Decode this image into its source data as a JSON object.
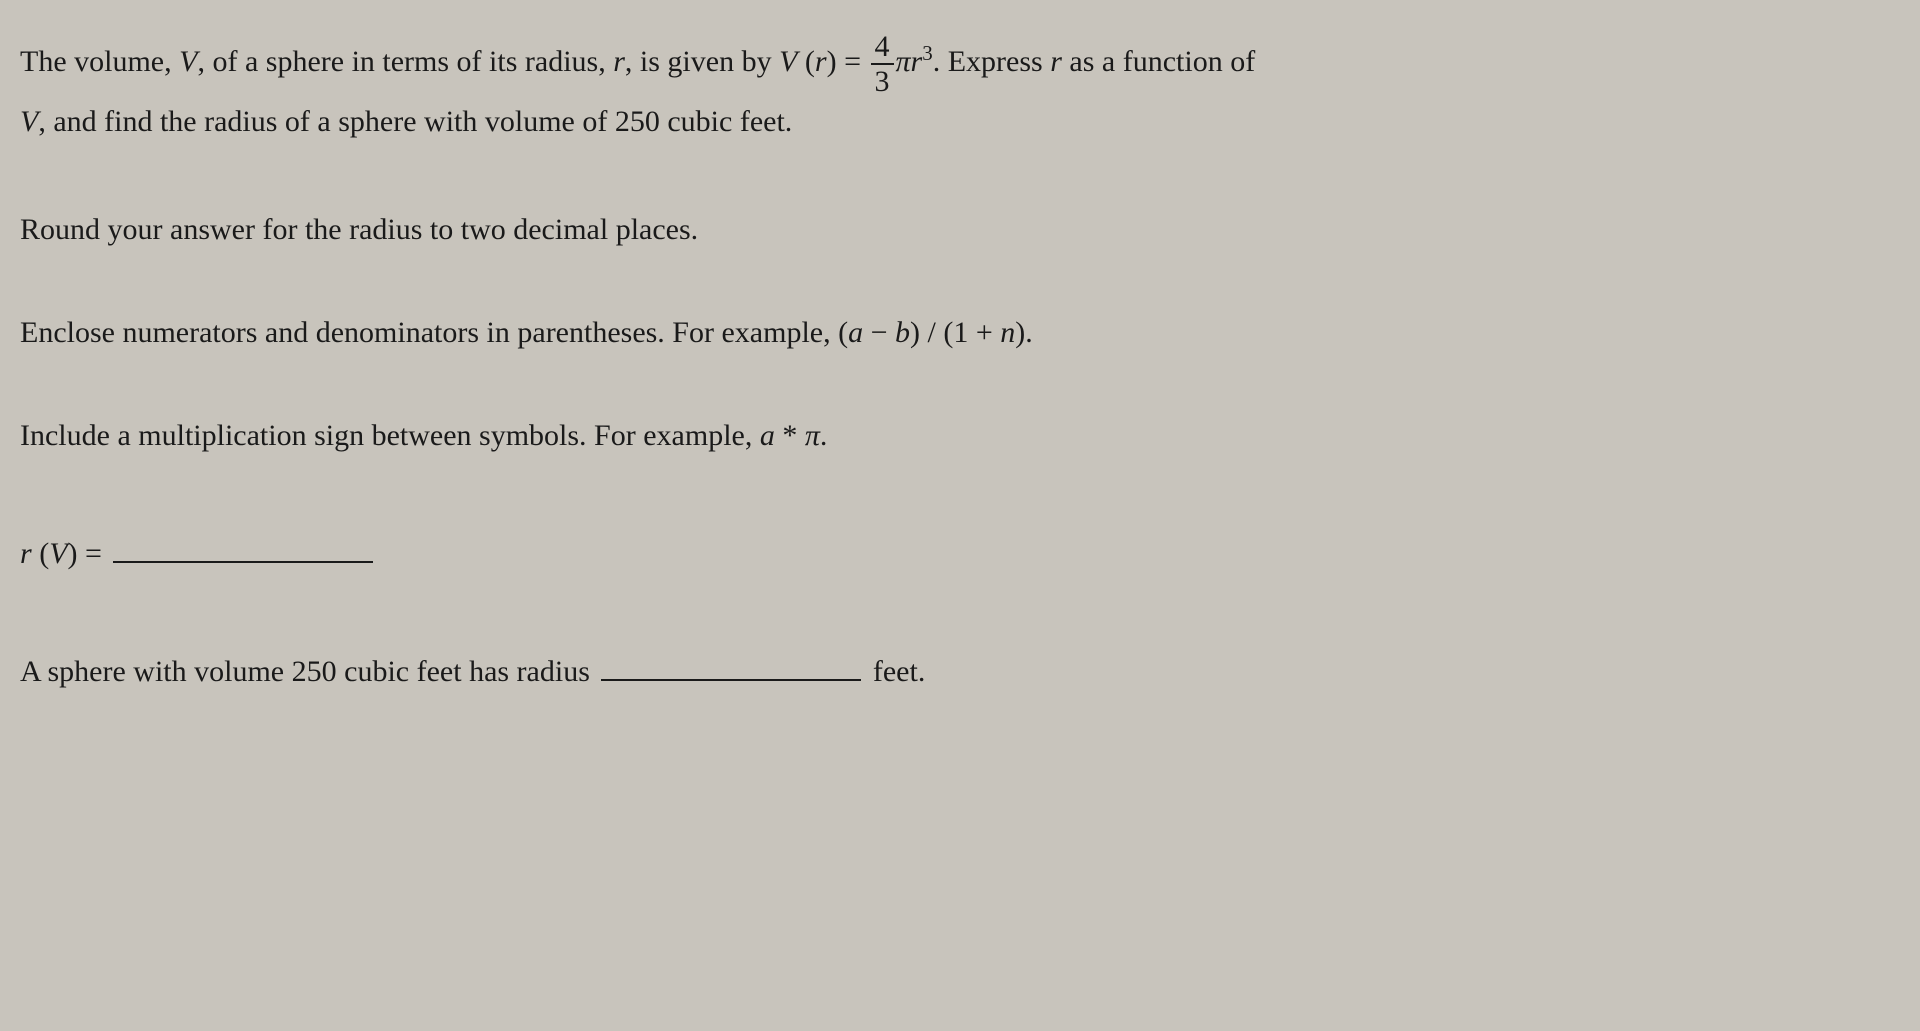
{
  "problem": {
    "line1_part1": "The volume, ",
    "var_V": "V",
    "line1_part2": ", of a sphere in terms of its radius, ",
    "var_r": "r",
    "line1_part3": ", is given by ",
    "func_V": "V",
    "func_open": " (",
    "func_arg": "r",
    "func_close": ") = ",
    "frac_num": "4",
    "frac_den": "3",
    "pi": "π",
    "r_cubed_base": "r",
    "r_cubed_exp": "3",
    "line1_part4": ". Express ",
    "line1_part5": " as a function of ",
    "line2_part1": ", and find the radius of a sphere with volume of ",
    "volume_value": "250",
    "line2_part2": " cubic feet."
  },
  "instruction1": "Round your answer for the radius to two decimal places.",
  "instruction2": {
    "text1": "Enclose numerators and denominators in parentheses. For example, ",
    "example": "(a − b) / (1 + n)",
    "text2": "."
  },
  "instruction3": {
    "text1": "Include a multiplication sign between symbols. For example, ",
    "example_a": "a",
    "example_star": " * ",
    "example_pi": "π",
    "text2": "."
  },
  "answer1": {
    "func_r": "r",
    "func_open": " (",
    "func_arg": "V",
    "func_close": ") = "
  },
  "answer2": {
    "text1": "A sphere with volume ",
    "volume_value": "250",
    "text2": " cubic feet has radius ",
    "text3": " feet."
  },
  "colors": {
    "background": "#c8c4bc",
    "text": "#1a1a1a"
  },
  "typography": {
    "base_fontsize": 30,
    "font_family": "Georgia, Times New Roman, serif"
  }
}
